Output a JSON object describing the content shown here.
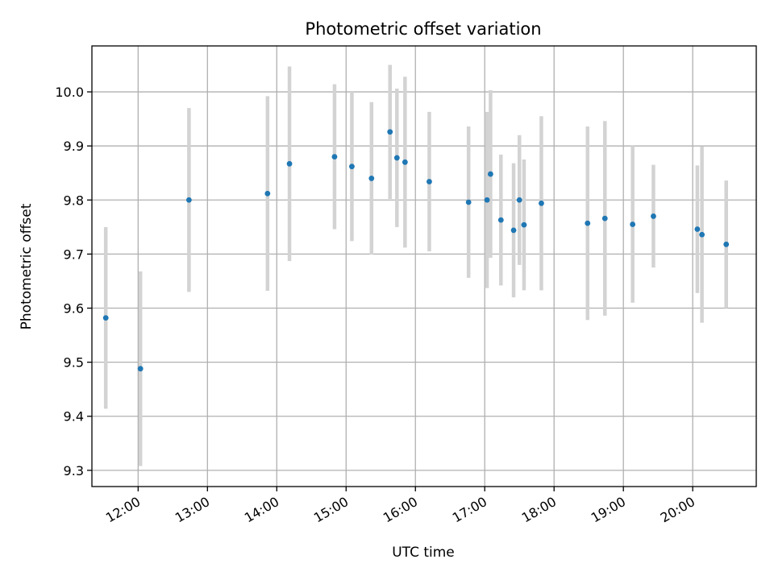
{
  "chart_data": {
    "type": "scatter",
    "title": "Photometric offset variation",
    "xlabel": "UTC time",
    "ylabel": "Photometric offset",
    "x_axis": "time",
    "xlim": [
      "11:20",
      "20:55"
    ],
    "ylim": [
      9.27,
      10.085
    ],
    "x_ticks": [
      "12:00",
      "13:00",
      "14:00",
      "15:00",
      "16:00",
      "17:00",
      "18:00",
      "19:00",
      "20:00"
    ],
    "y_ticks": [
      "9.3",
      "9.4",
      "9.5",
      "9.6",
      "9.7",
      "9.8",
      "9.9",
      "10.0"
    ],
    "grid": true,
    "point_color": "#1f77b4",
    "errorbar_color": "#d3d3d3",
    "points": [
      {
        "x": "11:32",
        "y": 9.582,
        "err": 0.168
      },
      {
        "x": "12:02",
        "y": 9.488,
        "err": 0.18
      },
      {
        "x": "12:44",
        "y": 9.8,
        "err": 0.17
      },
      {
        "x": "13:52",
        "y": 9.812,
        "err": 0.18
      },
      {
        "x": "14:11",
        "y": 9.867,
        "err": 0.18
      },
      {
        "x": "14:50",
        "y": 9.88,
        "err": 0.134
      },
      {
        "x": "15:05",
        "y": 9.862,
        "err": 0.138
      },
      {
        "x": "15:22",
        "y": 9.84,
        "err": 0.141
      },
      {
        "x": "15:38",
        "y": 9.926,
        "err": 0.124
      },
      {
        "x": "15:44",
        "y": 9.878,
        "err": 0.128
      },
      {
        "x": "15:51",
        "y": 9.87,
        "err": 0.158
      },
      {
        "x": "16:12",
        "y": 9.834,
        "err": 0.129
      },
      {
        "x": "16:46",
        "y": 9.796,
        "err": 0.14
      },
      {
        "x": "17:02",
        "y": 9.8,
        "err": 0.163
      },
      {
        "x": "17:05",
        "y": 9.848,
        "err": 0.155
      },
      {
        "x": "17:14",
        "y": 9.763,
        "err": 0.121
      },
      {
        "x": "17:25",
        "y": 9.744,
        "err": 0.124
      },
      {
        "x": "17:30",
        "y": 9.8,
        "err": 0.12
      },
      {
        "x": "17:34",
        "y": 9.754,
        "err": 0.121
      },
      {
        "x": "17:49",
        "y": 9.794,
        "err": 0.161
      },
      {
        "x": "18:29",
        "y": 9.757,
        "err": 0.179
      },
      {
        "x": "18:44",
        "y": 9.766,
        "err": 0.18
      },
      {
        "x": "19:08",
        "y": 9.755,
        "err": 0.145
      },
      {
        "x": "19:26",
        "y": 9.77,
        "err": 0.095
      },
      {
        "x": "20:04",
        "y": 9.746,
        "err": 0.118
      },
      {
        "x": "20:08",
        "y": 9.736,
        "err": 0.163
      },
      {
        "x": "20:29",
        "y": 9.718,
        "err": 0.118
      }
    ]
  }
}
